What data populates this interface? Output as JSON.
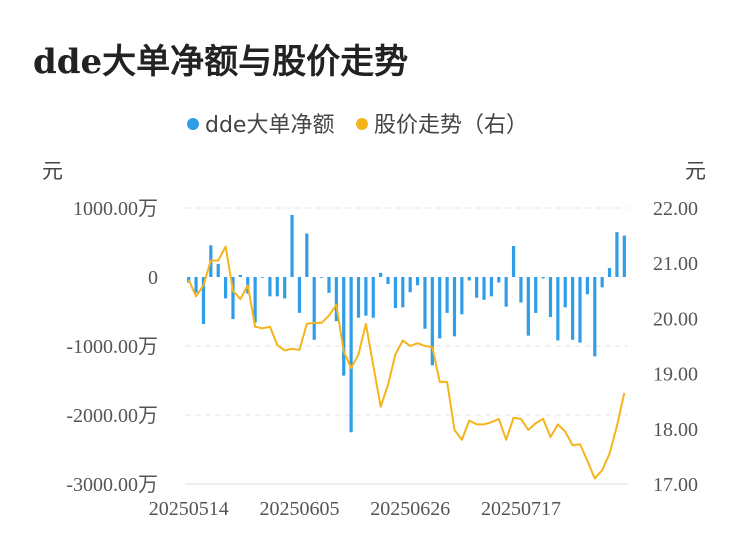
{
  "title": "dde大单净额与股价走势",
  "chart_data": {
    "type": "bar+line",
    "legend": [
      {
        "name": "dde大单净额",
        "color": "#2f9de8"
      },
      {
        "name": "股价走势（右）",
        "color": "#f4b41a"
      }
    ],
    "left_unit": "元",
    "right_unit": "元",
    "left_ticks": [
      "1000.00万",
      "0",
      "-1000.00万",
      "-2000.00万",
      "-3000.00万"
    ],
    "right_ticks": [
      "22.00",
      "21.00",
      "20.00",
      "19.00",
      "18.00",
      "17.00"
    ],
    "left_range": [
      -3000,
      1000
    ],
    "right_range": [
      17,
      22
    ],
    "x_ticks": [
      "20250514",
      "20250605",
      "20250626",
      "20250717"
    ],
    "x_tick_index": [
      0,
      15,
      30,
      45
    ],
    "bars": [
      -80,
      -230,
      -680,
      460,
      190,
      -310,
      -610,
      30,
      -240,
      -660,
      -10,
      -280,
      -280,
      -310,
      900,
      -520,
      630,
      -910,
      -10,
      -230,
      -640,
      -1430,
      -2250,
      -590,
      -560,
      -590,
      60,
      -100,
      -450,
      -440,
      -220,
      -120,
      -750,
      -1280,
      -890,
      -520,
      -860,
      -540,
      -50,
      -300,
      -330,
      -280,
      -80,
      -430,
      450,
      -370,
      -850,
      -520,
      -20,
      -580,
      -920,
      -440,
      -910,
      -950,
      -250,
      -1150,
      -150,
      130,
      650,
      600
    ],
    "price": [
      20.7,
      20.4,
      20.6,
      21.05,
      21.05,
      21.3,
      20.5,
      20.35,
      20.6,
      19.85,
      19.82,
      19.85,
      19.52,
      19.42,
      19.45,
      19.43,
      19.9,
      19.92,
      19.92,
      20.05,
      20.25,
      19.4,
      19.1,
      19.35,
      19.9,
      19.15,
      18.4,
      18.8,
      19.35,
      19.6,
      19.5,
      19.55,
      19.5,
      19.48,
      18.85,
      18.85,
      17.98,
      17.8,
      18.15,
      18.08,
      18.08,
      18.12,
      18.18,
      17.8,
      18.2,
      18.18,
      17.98,
      18.1,
      18.18,
      17.85,
      18.08,
      17.95,
      17.7,
      17.72,
      17.42,
      17.1,
      17.25,
      17.55,
      18.05,
      18.65
    ]
  }
}
